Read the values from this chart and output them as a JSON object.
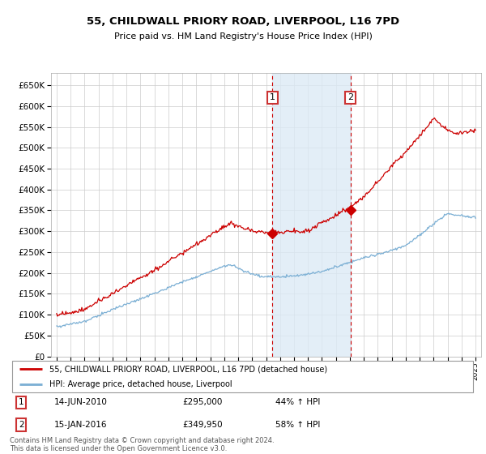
{
  "title": "55, CHILDWALL PRIORY ROAD, LIVERPOOL, L16 7PD",
  "subtitle": "Price paid vs. HM Land Registry's House Price Index (HPI)",
  "ylim": [
    0,
    680000
  ],
  "ytick_values": [
    0,
    50000,
    100000,
    150000,
    200000,
    250000,
    300000,
    350000,
    400000,
    450000,
    500000,
    550000,
    600000,
    650000
  ],
  "sale1_year": 2010.45,
  "sale1_price": 295000,
  "sale1_label": "1",
  "sale2_year": 2016.04,
  "sale2_price": 349950,
  "sale2_label": "2",
  "legend_line1": "55, CHILDWALL PRIORY ROAD, LIVERPOOL, L16 7PD (detached house)",
  "legend_line2": "HPI: Average price, detached house, Liverpool",
  "annotation1_date": "14-JUN-2010",
  "annotation1_price": "£295,000",
  "annotation1_hpi": "44% ↑ HPI",
  "annotation2_date": "15-JAN-2016",
  "annotation2_price": "£349,950",
  "annotation2_hpi": "58% ↑ HPI",
  "footer": "Contains HM Land Registry data © Crown copyright and database right 2024.\nThis data is licensed under the Open Government Licence v3.0.",
  "hpi_color": "#7bafd4",
  "price_color": "#cc0000",
  "shaded_region_color": "#dceaf5",
  "marker_box_color": "#cc3333",
  "grid_color": "#cccccc"
}
